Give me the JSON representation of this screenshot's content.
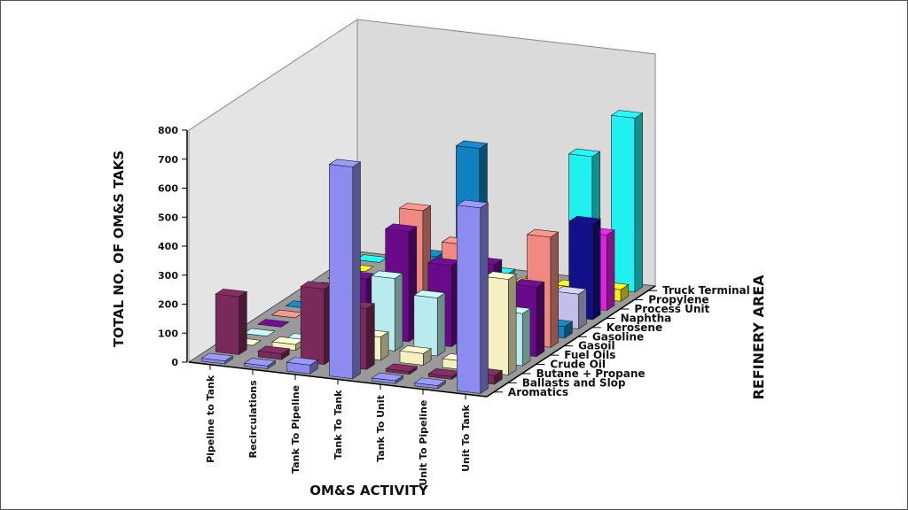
{
  "chart_data": {
    "type": "bar",
    "subtype": "3d-grouped",
    "title": "",
    "xlabel": "OM&S ACTIVITY",
    "ylabel": "TOTAL NO. OF OM&S TAKS",
    "zlabel": "REFINERY AREA",
    "ylim": [
      0,
      800
    ],
    "yticks": [
      0,
      100,
      200,
      300,
      400,
      500,
      600,
      700,
      800
    ],
    "categories": [
      "Pipeline to Tank",
      "Recirculations",
      "Tank To Pipeline",
      "Tank To Tank",
      "Tank To Unit",
      "Unit To Pipeline",
      "Unit To Tank"
    ],
    "series": [
      {
        "name": "Aromatics",
        "color": "#8c8cf0",
        "values": [
          10,
          10,
          30,
          730,
          10,
          10,
          640
        ]
      },
      {
        "name": "Ballasts and Slop",
        "color": "#7a2a5a",
        "values": [
          200,
          20,
          260,
          210,
          10,
          10,
          30
        ]
      },
      {
        "name": "Butane + Propane",
        "color": "#f5f0c0",
        "values": [
          0,
          20,
          40,
          80,
          40,
          30,
          330
        ]
      },
      {
        "name": "Crude Oil",
        "color": "#b8ecec",
        "values": [
          0,
          0,
          40,
          250,
          200,
          60,
          180
        ]
      },
      {
        "name": "Fuel Oils",
        "color": "#6a0a8a",
        "values": [
          0,
          0,
          200,
          380,
          280,
          300,
          240
        ]
      },
      {
        "name": "Gasoil",
        "color": "#f08a80",
        "values": [
          0,
          0,
          60,
          420,
          320,
          50,
          380
        ]
      },
      {
        "name": "Gasoline",
        "color": "#1080c0",
        "values": [
          0,
          0,
          20,
          230,
          620,
          80,
          40
        ]
      },
      {
        "name": "Kerosene",
        "color": "#c0c0e8",
        "values": [
          0,
          0,
          30,
          60,
          40,
          30,
          120
        ]
      },
      {
        "name": "Naphtha",
        "color": "#10108a",
        "values": [
          0,
          0,
          10,
          20,
          10,
          40,
          330
        ]
      },
      {
        "name": "Process Unit",
        "color": "#e020e0",
        "values": [
          0,
          0,
          10,
          20,
          10,
          20,
          260
        ]
      },
      {
        "name": "Propylene",
        "color": "#f0f020",
        "values": [
          0,
          0,
          5,
          20,
          20,
          30,
          40
        ]
      },
      {
        "name": "Truck Terminal",
        "color": "#20f0f0",
        "values": [
          0,
          0,
          5,
          10,
          10,
          450,
          600
        ]
      }
    ],
    "grid": false,
    "legend": "none"
  }
}
